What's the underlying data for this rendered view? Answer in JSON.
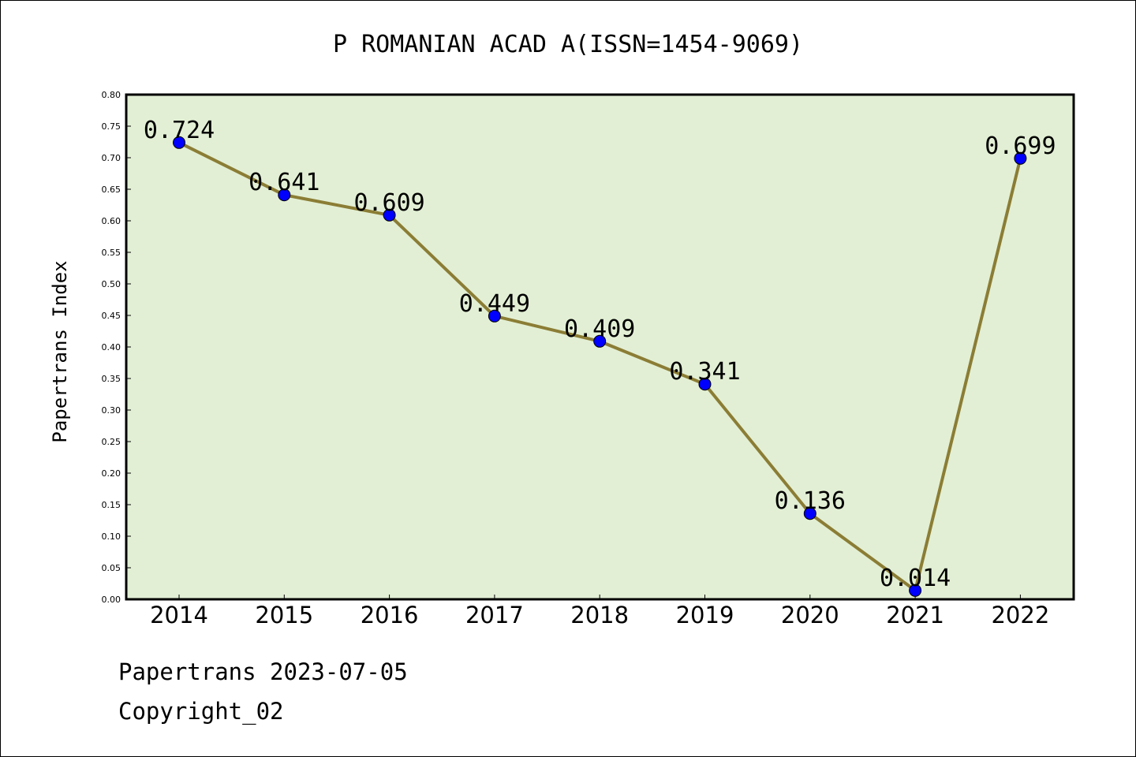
{
  "chart_data": {
    "type": "line",
    "title": "P ROMANIAN ACAD A(ISSN=1454-9069)",
    "xlabel": "",
    "ylabel": "Papertrans Index",
    "categories": [
      "2014",
      "2015",
      "2016",
      "2017",
      "2018",
      "2019",
      "2020",
      "2021",
      "2022"
    ],
    "values": [
      0.724,
      0.641,
      0.609,
      0.449,
      0.409,
      0.341,
      0.136,
      0.014,
      0.699
    ],
    "data_labels": [
      "0.724",
      "0.641",
      "0.609",
      "0.449",
      "0.409",
      "0.341",
      "0.136",
      "0.014",
      "0.699"
    ],
    "ylim": [
      0,
      0.8
    ],
    "yticks": [
      "0.00",
      "0.05",
      "0.10",
      "0.15",
      "0.20",
      "0.25",
      "0.30",
      "0.35",
      "0.40",
      "0.45",
      "0.50",
      "0.55",
      "0.60",
      "0.65",
      "0.70",
      "0.75",
      "0.80"
    ],
    "grid": false,
    "colors": {
      "plot_background": "#e2efd4",
      "line": "#8b7d35",
      "marker": "#0000ff"
    }
  },
  "footer": {
    "line1": "Papertrans 2023-07-05",
    "line2": "Copyright_02"
  }
}
